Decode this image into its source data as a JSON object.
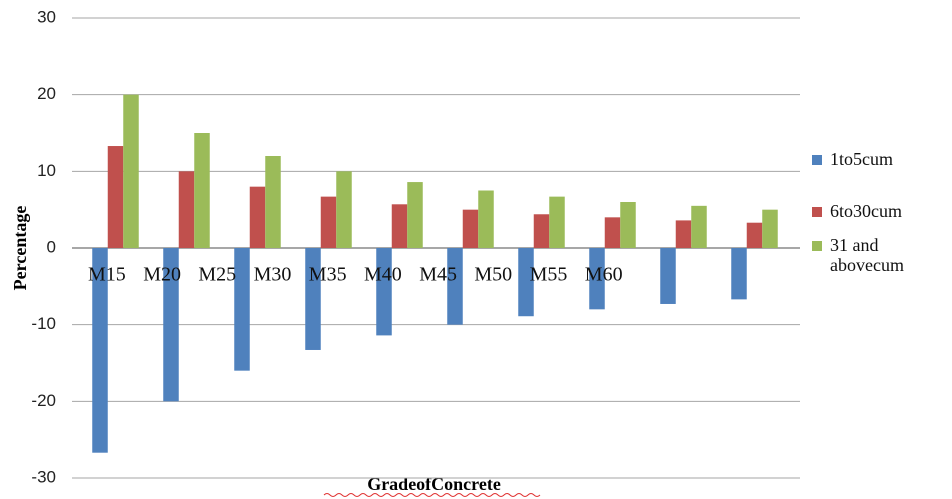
{
  "chart_data": {
    "type": "bar",
    "xlabel": "GradeofConcrete",
    "ylabel": "Percentage",
    "categories": [
      "M15",
      "M20",
      "M25",
      "M30",
      "M35",
      "M40",
      "M45",
      "M50",
      "M55",
      "M60"
    ],
    "series": [
      {
        "name": "1to5cum",
        "color": "#4f81bd",
        "values": [
          -26.7,
          -20,
          -16,
          -13.3,
          -11.4,
          -10,
          -8.9,
          -8,
          -7.3,
          -6.7
        ]
      },
      {
        "name": "6to30cum",
        "color": "#c0504d",
        "values": [
          13.3,
          10,
          8,
          6.7,
          5.7,
          5,
          4.4,
          4,
          3.6,
          3.3
        ]
      },
      {
        "name": "31 and abovecum",
        "color": "#9bbb59",
        "values": [
          20,
          15,
          12,
          10,
          8.6,
          7.5,
          6.7,
          6,
          5.5,
          5
        ]
      }
    ],
    "ylim": [
      -30,
      30
    ],
    "yticks": [
      -30,
      -20,
      -10,
      0,
      10,
      20,
      30
    ],
    "grid": true,
    "legend": "right"
  }
}
